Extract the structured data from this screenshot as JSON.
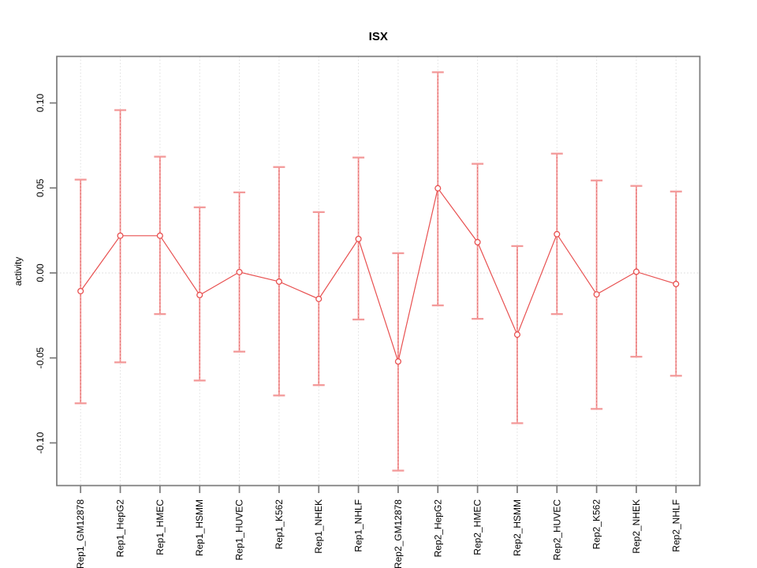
{
  "chart_data": {
    "type": "line",
    "title": "ISX",
    "xlabel": "",
    "ylabel": "activity",
    "legend": "none",
    "grid": {
      "vertical_dotted_per_category": true,
      "horizontal_dotted_zero_line": true
    },
    "ylim": [
      -0.1251,
      0.1274
    ],
    "ytick_values": [
      -0.1,
      -0.05,
      0.0,
      0.05,
      0.1
    ],
    "ytick_labels": [
      "-0.10",
      "-0.05",
      "0.00",
      "0.05",
      "0.10"
    ],
    "categories": [
      "Rep1_GM12878",
      "Rep1_HepG2",
      "Rep1_HMEC",
      "Rep1_HSMM",
      "Rep1_HUVEC",
      "Rep1_K562",
      "Rep1_NHEK",
      "Rep1_NHLF",
      "Rep2_GM12878",
      "Rep2_HepG2",
      "Rep2_HMEC",
      "Rep2_HSMM",
      "Rep2_HUVEC",
      "Rep2_K562",
      "Rep2_NHEK",
      "Rep2_NHLF"
    ],
    "series": [
      {
        "name": "activity",
        "point_style": "open-circle",
        "values": [
          -0.0107,
          0.0219,
          0.0219,
          -0.013,
          0.0005,
          -0.0051,
          -0.0153,
          0.02,
          -0.0521,
          0.0498,
          0.0181,
          -0.0363,
          0.0228,
          -0.0126,
          0.0007,
          -0.0065
        ],
        "error_upper": [
          0.0549,
          0.0958,
          0.0684,
          0.0386,
          0.0474,
          0.0623,
          0.0358,
          0.0679,
          0.0116,
          0.1181,
          0.0642,
          0.0158,
          0.0702,
          0.0544,
          0.0512,
          0.0479
        ],
        "error_lower": [
          -0.0767,
          -0.0526,
          -0.0242,
          -0.0633,
          -0.0463,
          -0.0721,
          -0.066,
          -0.0274,
          -0.1163,
          -0.0191,
          -0.027,
          -0.0884,
          -0.0242,
          -0.08,
          -0.0493,
          -0.0605
        ]
      }
    ],
    "colors": {
      "series_line": "#e85151",
      "point_stroke": "#e85151",
      "error_bar": "#f39a9a",
      "error_bar_overlay": "#e25f5f",
      "frame": "#7a7a7a",
      "grid": "#dedede",
      "zero_line": "#d8d8d8",
      "text": "#000000"
    }
  }
}
